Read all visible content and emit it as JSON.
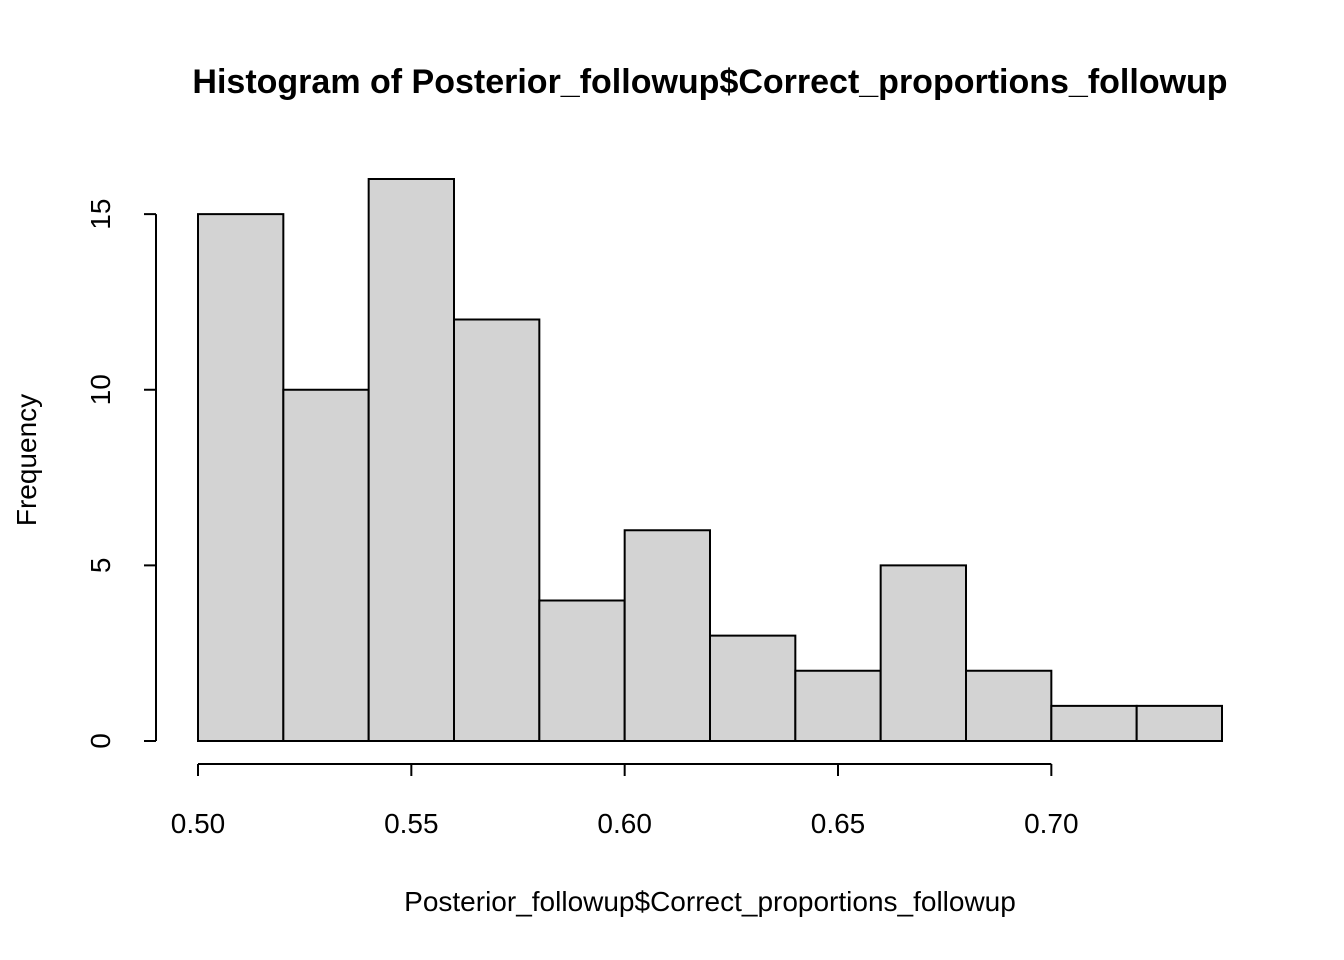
{
  "chart_data": {
    "type": "bar",
    "subtype": "histogram",
    "title": "Histogram of Posterior_followup$Correct_proportions_followup",
    "xlabel": "Posterior_followup$Correct_proportions_followup",
    "ylabel": "Frequency",
    "bin_edges": [
      0.5,
      0.52,
      0.54,
      0.56,
      0.58,
      0.6,
      0.62,
      0.64,
      0.66,
      0.68,
      0.7,
      0.72,
      0.74
    ],
    "values": [
      15,
      10,
      16,
      12,
      4,
      6,
      3,
      2,
      5,
      2,
      1,
      1
    ],
    "xlim": [
      0.5,
      0.74
    ],
    "ylim": [
      0,
      16
    ],
    "x_ticks": [
      0.5,
      0.55,
      0.6,
      0.65,
      0.7
    ],
    "x_tick_labels": [
      "0.50",
      "0.55",
      "0.60",
      "0.65",
      "0.70"
    ],
    "y_ticks": [
      0,
      5,
      10,
      15
    ],
    "y_tick_labels": [
      "0",
      "5",
      "10",
      "15"
    ],
    "grid": false,
    "legend": "none",
    "colors": {
      "bar_fill": "#d3d3d3",
      "bar_stroke": "#000000",
      "background": "#ffffff"
    }
  }
}
